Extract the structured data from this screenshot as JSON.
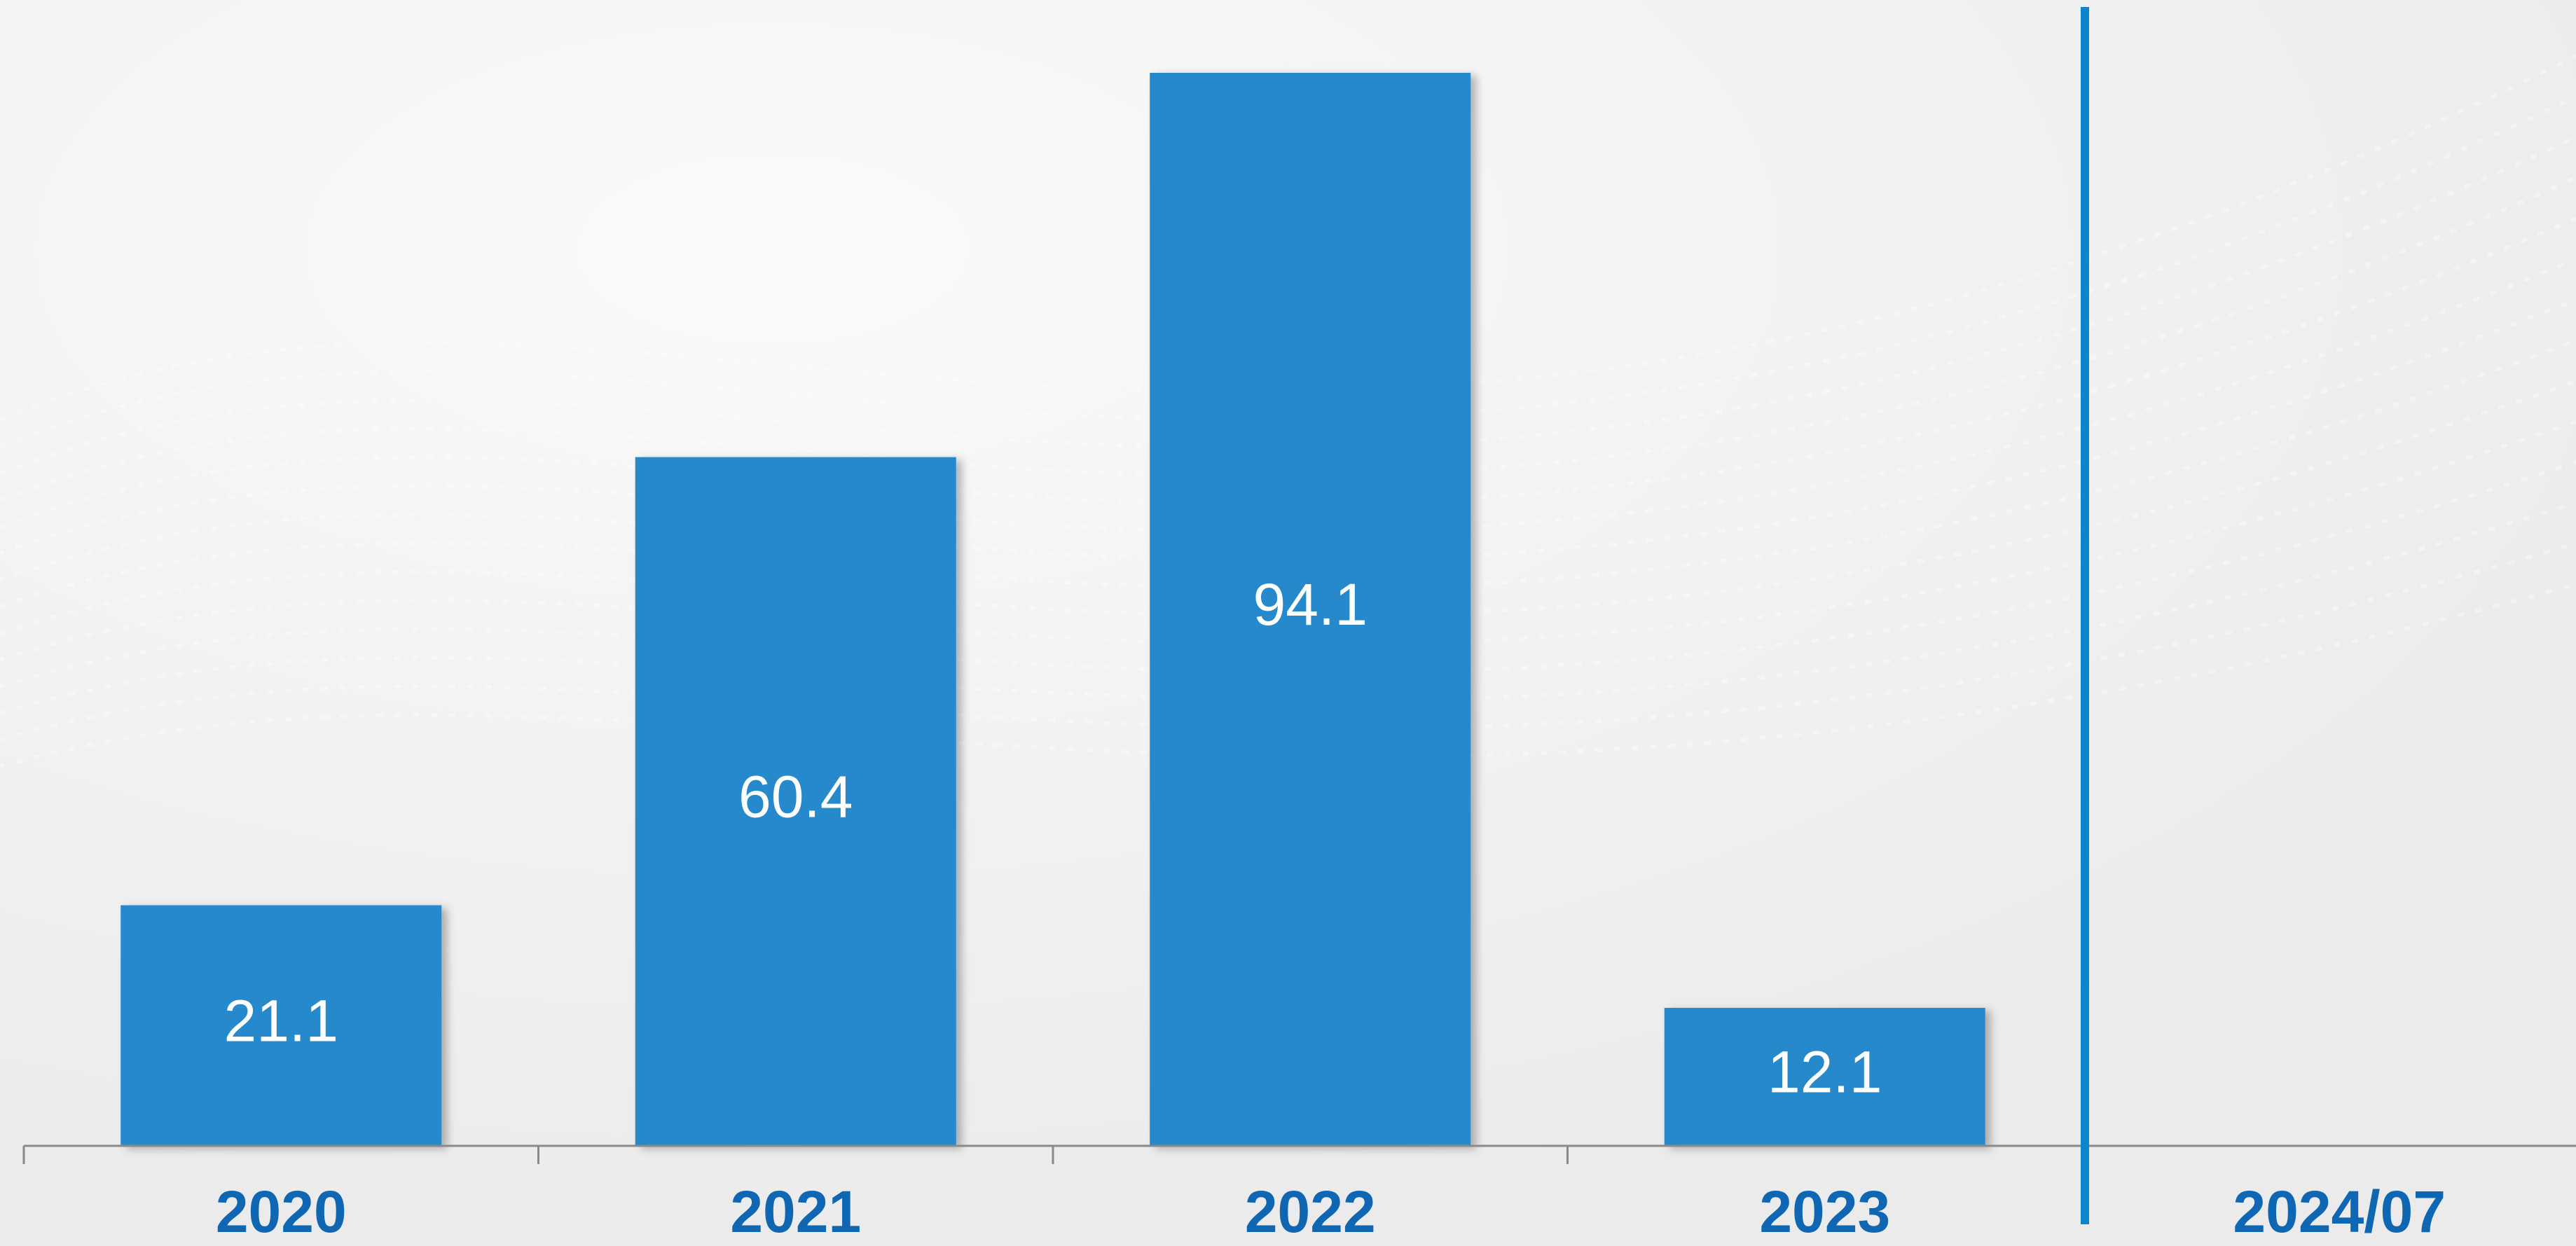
{
  "chart_data": {
    "type": "bar",
    "categories": [
      "2020",
      "2021",
      "2022",
      "2023",
      "2024/07"
    ],
    "values": [
      21.1,
      60.4,
      94.1,
      12.1,
      null
    ],
    "data_labels": [
      "21.1",
      "60.4",
      "94.1",
      "12.1",
      ""
    ],
    "title": "",
    "xlabel": "",
    "ylabel": "",
    "ylim": [
      0,
      94.1
    ],
    "grid": false,
    "legend": "none",
    "separator_after_category": "2023"
  },
  "colors": {
    "bar": "#2589cb",
    "separator": "#0b86cc",
    "category_label": "#0f67b3",
    "value_label": "#ffffff"
  }
}
